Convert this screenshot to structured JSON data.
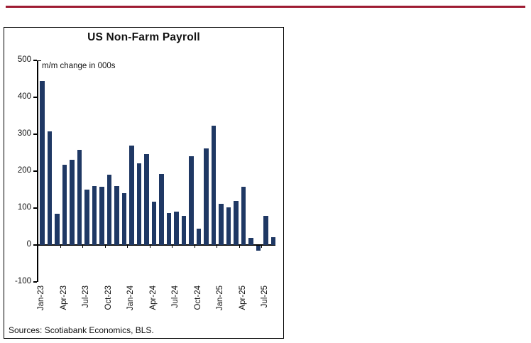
{
  "accent": {
    "top_rule_color": "#9e1b32"
  },
  "chart_data": {
    "type": "bar",
    "title": "US Non-Farm Payroll",
    "annotation": "m/m change in 000s",
    "source": "Sources: Scotiabank Economics, BLS.",
    "bar_color": "#1f3864",
    "ylim": [
      -100,
      500
    ],
    "yticks": [
      500,
      400,
      300,
      200,
      100,
      0,
      -100
    ],
    "xtick_every_n": 3,
    "grid": "zero-line-only",
    "legend": "none",
    "categories": [
      "Jan-23",
      "Feb-23",
      "Mar-23",
      "Apr-23",
      "May-23",
      "Jun-23",
      "Jul-23",
      "Aug-23",
      "Sep-23",
      "Oct-23",
      "Nov-23",
      "Dec-23",
      "Jan-24",
      "Feb-24",
      "Mar-24",
      "Apr-24",
      "May-24",
      "Jun-24",
      "Jul-24",
      "Aug-24",
      "Sep-24",
      "Oct-24",
      "Nov-24",
      "Dec-24",
      "Jan-25",
      "Feb-25",
      "Mar-25",
      "Apr-25",
      "May-25",
      "Jun-25",
      "Jul-25",
      "Aug-25"
    ],
    "values": [
      445,
      307,
      85,
      217,
      231,
      257,
      150,
      160,
      158,
      190,
      160,
      140,
      270,
      222,
      246,
      118,
      193,
      87,
      90,
      78,
      240,
      44,
      261,
      323,
      111,
      102,
      120,
      158,
      19,
      -13,
      79,
      22
    ],
    "xtick_labels_shown": [
      "Jan-23",
      "Apr-23",
      "Jul-23",
      "Oct-23",
      "Jan-24",
      "Apr-24",
      "Jul-24",
      "Oct-24",
      "Jan-25",
      "Apr-25",
      "Jul-25"
    ]
  }
}
